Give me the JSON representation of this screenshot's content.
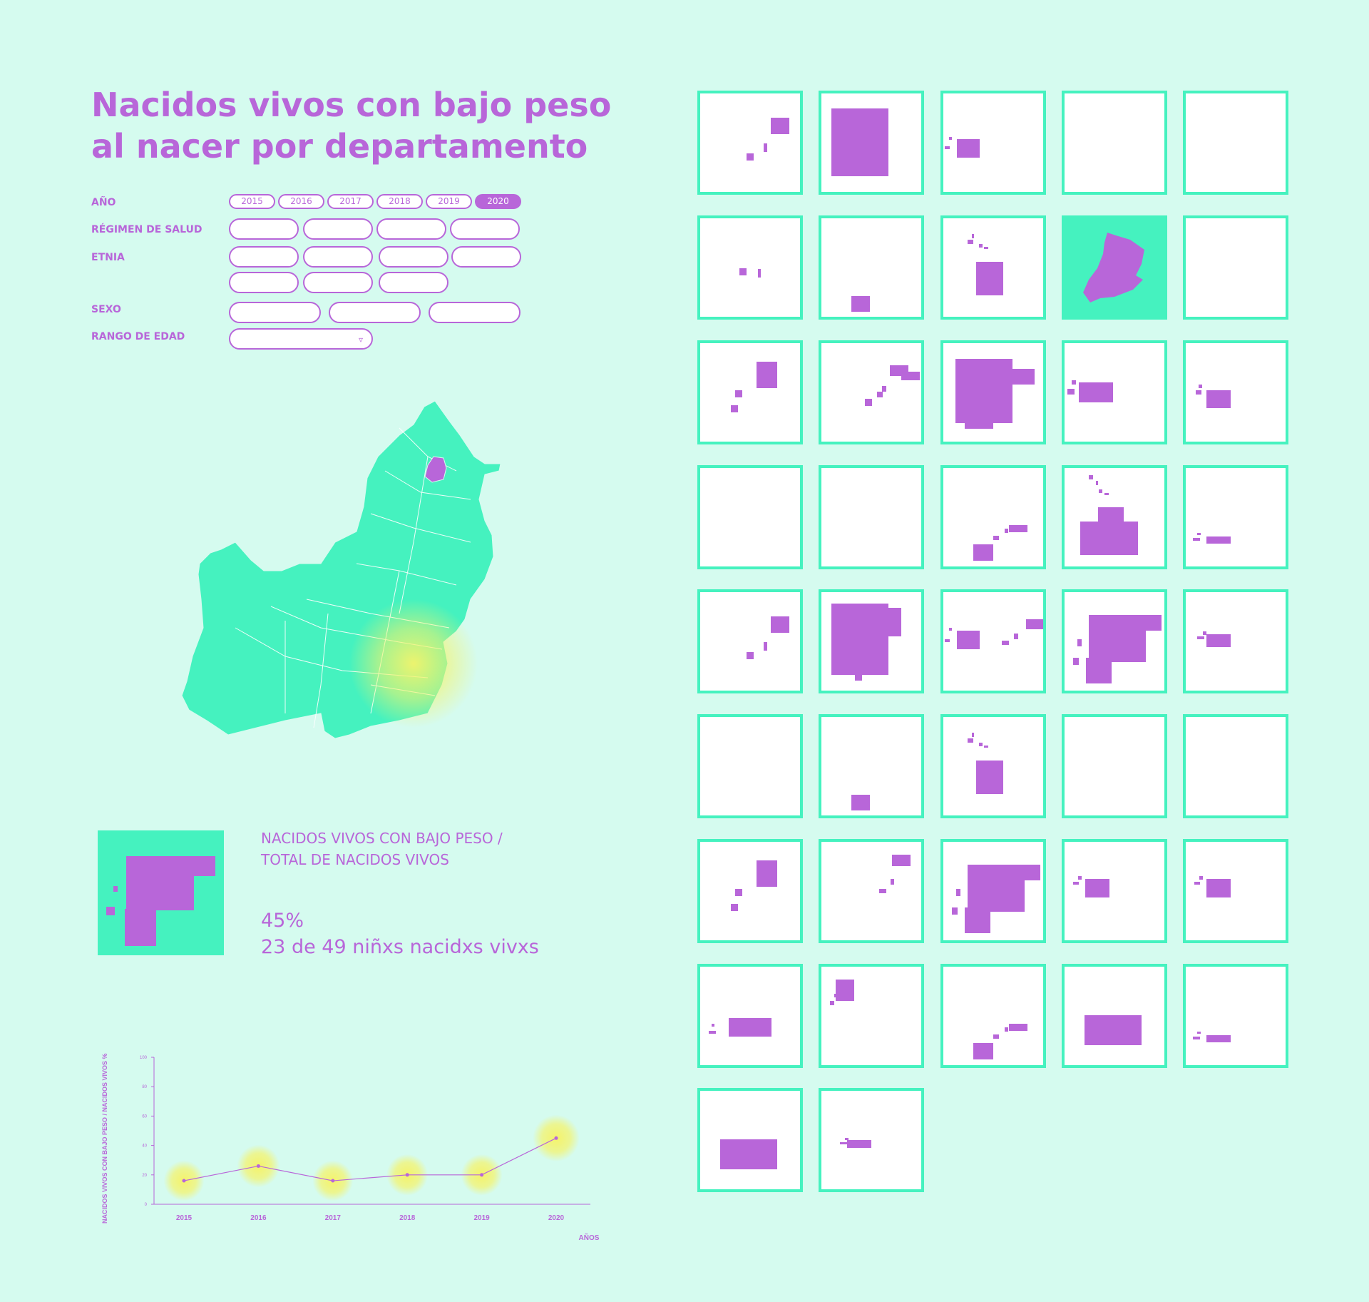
{
  "title": "Nacidos vivos con bajo peso al nacer por departamento",
  "filters": {
    "year_label": "AÑO",
    "years": [
      "2015",
      "2016",
      "2017",
      "2018",
      "2019",
      "2020"
    ],
    "selected_year": "2020",
    "regimen_label": "RÉGIMEN DE SALUD",
    "etnia_label": "ETNIA",
    "sexo_label": "SEXO",
    "edad_label": "RANGO DE EDAD",
    "dropdown_icon": "triangle-down-icon"
  },
  "stat": {
    "title_line1": "NACIDOS VIVOS CON BAJO PESO /",
    "title_line2": "TOTAL DE NACIDOS VIVOS",
    "percent": "45%",
    "count_text": "23 de 49 niñxs nacidxs vivxs"
  },
  "colors": {
    "background": "#d5fbef",
    "accent": "#b866d9",
    "map": "#45f2bf",
    "highlight": "#f5f36a"
  },
  "chart_data": {
    "type": "line",
    "x": [
      "2015",
      "2016",
      "2017",
      "2018",
      "2019",
      "2020"
    ],
    "series": [
      {
        "values": [
          16,
          26,
          16,
          20,
          20,
          45
        ]
      }
    ],
    "ylabel": "NACIDOS VIVOS CON BAJO PESO / NACIDOS VIVOS %",
    "xlabel": "AÑOS",
    "yticks": [
      "0",
      "20",
      "40",
      "60",
      "80",
      "100"
    ],
    "ylim": [
      0,
      100
    ],
    "grid": false
  }
}
